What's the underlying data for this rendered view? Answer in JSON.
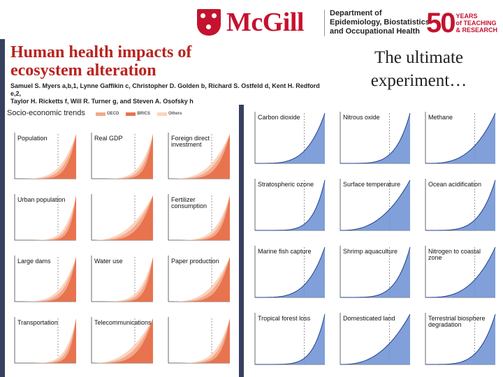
{
  "header": {
    "logo_word": "McGill",
    "department_lines": [
      "Department of",
      "Epidemiology, Biostatistics",
      "and Occupational Health"
    ],
    "anniversary_number": "50",
    "anniversary_lines": [
      "YEARS",
      "of TEACHING",
      "& RESEARCH"
    ]
  },
  "paper": {
    "title_line1": "Human health impacts of",
    "title_line2": "ecosystem alteration",
    "authors_line1": "Samuel S. Myers a,b,1, Lynne Gaffikin c, Christopher D. Golden b, Richard S. Ostfeld d, Kent H. Redford e,2,",
    "authors_line2": "Taylor H. Ricketts f, Will R. Turner g, and Steven A. Osofsky h"
  },
  "caption": {
    "line1": "The ultimate",
    "line2": "experiment…"
  },
  "socio": {
    "title": "Socio-economic trends",
    "legend": [
      "OECD",
      "BRICS",
      "Others"
    ],
    "legend_colors": [
      "#f2a98b",
      "#e8734f",
      "#fbd3be"
    ],
    "panels": [
      "Population",
      "Real GDP",
      "Foreign direct investment",
      "Urban population",
      "",
      "Fertilizer consumption",
      "Large dams",
      "Water use",
      "Paper production",
      "Transportation",
      "Telecommunications",
      ""
    ]
  },
  "earth": {
    "panels": [
      "Carbon dioxide",
      "Nitrous oxide",
      "Methane",
      "Stratospheric ozone",
      "Surface temperature",
      "Ocean acidification",
      "Marine fish capture",
      "Shrimp aquaculture",
      "Nitrogen to coastal zone",
      "Tropical forest loss",
      "Domesticated land",
      "Terrestrial biosphere degradation"
    ]
  }
}
